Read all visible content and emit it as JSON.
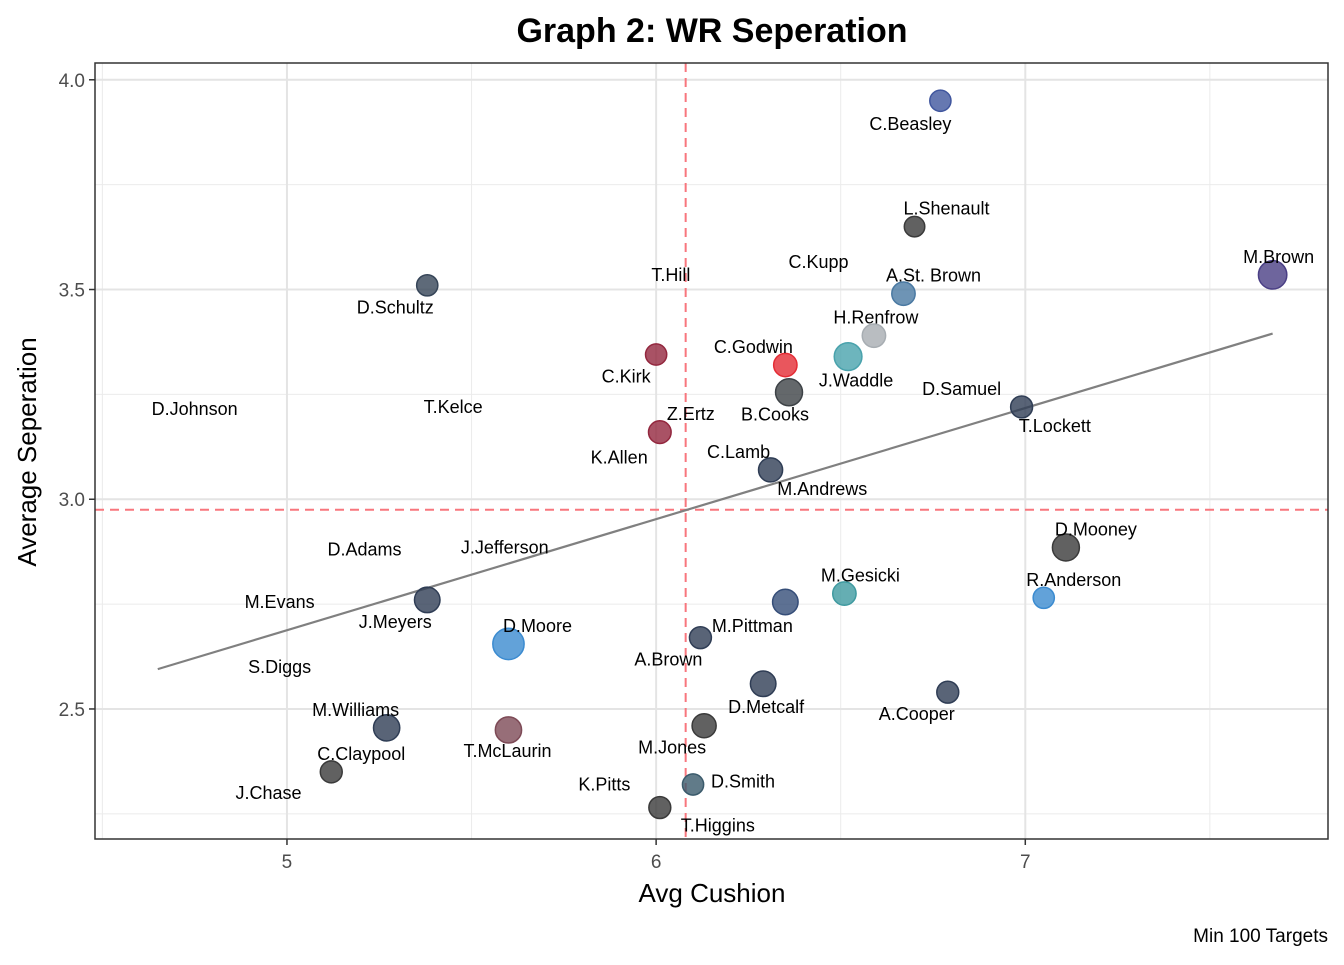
{
  "chart_data": {
    "type": "scatter",
    "title": "Graph 2: WR Seperation",
    "xlabel": "Avg Cushion",
    "ylabel": "Average Seperation",
    "caption": "Min 100 Targets",
    "xlim": [
      4.48,
      7.82
    ],
    "ylim": [
      2.19,
      4.04
    ],
    "xticks": [
      5,
      6,
      7
    ],
    "yticks": [
      2.5,
      3.0,
      3.5,
      4.0
    ],
    "x_tick_labels": [
      "5",
      "6",
      "7"
    ],
    "y_tick_labels": [
      "2.5",
      "3.0",
      "3.5",
      "4.0"
    ],
    "grid": true,
    "mean_lines": {
      "x": 6.08,
      "y": 2.975,
      "color": "#f8767d",
      "style": "dashed"
    },
    "trend_line": {
      "x": [
        4.65,
        7.67
      ],
      "y": [
        2.595,
        3.395
      ],
      "color": "#808080"
    },
    "points": [
      {
        "name": "C.Beasley",
        "x": 6.77,
        "y": 3.95,
        "size": 1.0,
        "color": "#40569e"
      },
      {
        "name": "L.Shenault",
        "x": 6.7,
        "y": 3.65,
        "size": 0.9,
        "color": "#3a3a3a"
      },
      {
        "name": "M.Brown",
        "x": 7.67,
        "y": 3.535,
        "size": 2.0,
        "color": "#4a3f85"
      },
      {
        "name": "A.St. Brown",
        "x": 6.67,
        "y": 3.49,
        "size": 1.3,
        "color": "#4a79a2"
      },
      {
        "name": "H.Renfrow",
        "x": 6.59,
        "y": 3.39,
        "size": 1.3,
        "color": "#a7adb2"
      },
      {
        "name": "J.Waddle",
        "x": 6.52,
        "y": 3.34,
        "size": 1.9,
        "color": "#49a2ac"
      },
      {
        "name": "C.Godwin",
        "x": 6.35,
        "y": 3.32,
        "size": 1.3,
        "color": "#e42c35"
      },
      {
        "name": "B.Cooks",
        "x": 6.36,
        "y": 3.255,
        "size": 1.8,
        "color": "#3d4246"
      },
      {
        "name": "D.Schultz",
        "x": 5.38,
        "y": 3.51,
        "size": 1.0,
        "color": "#364558"
      },
      {
        "name": "C.Kirk",
        "x": 6.0,
        "y": 3.345,
        "size": 1.0,
        "color": "#93273e"
      },
      {
        "name": "Z.Ertz",
        "x": 6.01,
        "y": 3.16,
        "size": 1.2,
        "color": "#93273e"
      },
      {
        "name": "D.Samuel",
        "x": 6.99,
        "y": 3.22,
        "size": 1.1,
        "color": "#2f3d55"
      },
      {
        "name": "C.Lamb",
        "x": 6.31,
        "y": 3.07,
        "size": 1.4,
        "color": "#2f3d55"
      },
      {
        "name": "D.Mooney",
        "x": 7.11,
        "y": 2.885,
        "size": 1.8,
        "color": "#3a3a3a"
      },
      {
        "name": "R.Anderson",
        "x": 7.05,
        "y": 2.765,
        "size": 1.0,
        "color": "#3b8bd0"
      },
      {
        "name": "M.Gesicki",
        "x": 6.51,
        "y": 2.775,
        "size": 1.3,
        "color": "#3f9aa0"
      },
      {
        "name": "M.Pittman",
        "x": 6.35,
        "y": 2.755,
        "size": 1.6,
        "color": "#354d78"
      },
      {
        "name": "J.Meyers",
        "x": 5.38,
        "y": 2.76,
        "size": 1.6,
        "color": "#2f3d55"
      },
      {
        "name": "D.Moore",
        "x": 5.6,
        "y": 2.655,
        "size": 2.4,
        "color": "#3b8bd0"
      },
      {
        "name": "A.Brown",
        "x": 6.12,
        "y": 2.67,
        "size": 1.1,
        "color": "#2f3d55"
      },
      {
        "name": "D.Metcalf",
        "x": 6.29,
        "y": 2.56,
        "size": 1.6,
        "color": "#2f3d55"
      },
      {
        "name": "A.Cooper",
        "x": 6.79,
        "y": 2.54,
        "size": 1.1,
        "color": "#2f3d55"
      },
      {
        "name": "M.Williams",
        "x": 5.27,
        "y": 2.455,
        "size": 1.7,
        "color": "#2f3d55"
      },
      {
        "name": "T.McLaurin",
        "x": 5.6,
        "y": 2.45,
        "size": 1.7,
        "color": "#7d4a56"
      },
      {
        "name": "M.Jones",
        "x": 6.13,
        "y": 2.46,
        "size": 1.4,
        "color": "#3a3a3a"
      },
      {
        "name": "C.Claypool",
        "x": 5.12,
        "y": 2.35,
        "size": 1.1,
        "color": "#3a3a3a"
      },
      {
        "name": "D.Smith",
        "x": 6.1,
        "y": 2.32,
        "size": 1.0,
        "color": "#3a5a6b"
      },
      {
        "name": "T.Higgins",
        "x": 6.01,
        "y": 2.265,
        "size": 1.1,
        "color": "#3a3a3a"
      },
      {
        "name": "T.Hill",
        "x": 6.04,
        "y": 3.535
      },
      {
        "name": "C.Kupp",
        "x": 6.44,
        "y": 3.565
      },
      {
        "name": "T.Kelce",
        "x": 5.45,
        "y": 3.22
      },
      {
        "name": "D.Johnson",
        "x": 4.75,
        "y": 3.215
      },
      {
        "name": "K.Allen",
        "x": 5.9,
        "y": 3.1
      },
      {
        "name": "T.Lockett",
        "x": 7.08,
        "y": 3.175
      },
      {
        "name": "M.Andrews",
        "x": 6.45,
        "y": 3.025
      },
      {
        "name": "J.Jefferson",
        "x": 5.59,
        "y": 2.885
      },
      {
        "name": "D.Adams",
        "x": 5.21,
        "y": 2.88
      },
      {
        "name": "M.Evans",
        "x": 4.98,
        "y": 2.755
      },
      {
        "name": "S.Diggs",
        "x": 4.98,
        "y": 2.6
      },
      {
        "name": "J.Chase",
        "x": 4.95,
        "y": 2.3
      },
      {
        "name": "K.Pitts",
        "x": 5.86,
        "y": 2.32
      }
    ]
  }
}
